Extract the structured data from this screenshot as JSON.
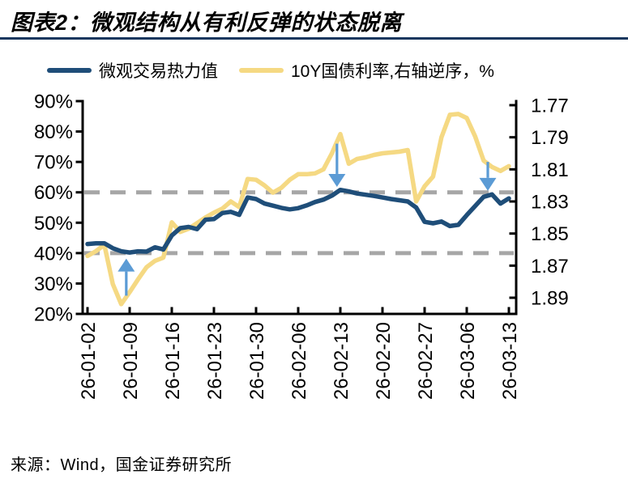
{
  "page": {
    "background": "#FFFFFF"
  },
  "header": {
    "title": "图表2：微观结构从有利反弹的状态脱离",
    "rule_color": "#17375E"
  },
  "legend": {
    "items": [
      {
        "label": "微观交易热力值",
        "color": "#1F4E79"
      },
      {
        "label": "10Y国债利率,右轴逆序，%",
        "color": "#F5D983"
      }
    ]
  },
  "chart_data": {
    "type": "line",
    "x": [
      "26-01-02",
      "26-01-05",
      "26-01-06",
      "26-01-07",
      "26-01-08",
      "26-01-09",
      "26-01-12",
      "26-01-13",
      "26-01-14",
      "26-01-15",
      "26-01-16",
      "26-01-19",
      "26-01-20",
      "26-01-21",
      "26-01-22",
      "26-01-23",
      "26-01-26",
      "26-01-27",
      "26-01-28",
      "26-01-29",
      "26-01-30",
      "26-02-02",
      "26-02-03",
      "26-02-04",
      "26-02-05",
      "26-02-06",
      "26-02-09",
      "26-02-10",
      "26-02-11",
      "26-02-12",
      "26-02-13",
      "26-02-16",
      "26-02-17",
      "26-02-18",
      "26-02-19",
      "26-02-20",
      "26-02-23",
      "26-02-24",
      "26-02-25",
      "26-02-26",
      "26-02-27",
      "26-03-02",
      "26-03-03",
      "26-03-04",
      "26-03-05",
      "26-03-06",
      "26-03-09",
      "26-03-10",
      "26-03-11",
      "26-03-12",
      "26-03-13"
    ],
    "x_tick_labels": [
      "26-01-02",
      "26-01-09",
      "26-01-16",
      "26-01-23",
      "26-01-30",
      "26-02-06",
      "26-02-13",
      "26-02-20",
      "26-02-27",
      "26-03-06",
      "26-03-13"
    ],
    "x_tick_every": 5,
    "series": [
      {
        "name": "微观交易热力值",
        "axis": "left",
        "color": "#1F4E79",
        "values": [
          43.0,
          43.2,
          43.2,
          41.6,
          40.6,
          40.2,
          40.6,
          40.5,
          41.9,
          41.2,
          45.8,
          48.2,
          48.6,
          47.9,
          51.0,
          51.2,
          53.2,
          53.6,
          52.6,
          58.3,
          57.8,
          56.3,
          55.6,
          54.9,
          54.4,
          54.8,
          55.7,
          56.8,
          57.6,
          58.9,
          60.8,
          60.3,
          59.6,
          59.2,
          58.8,
          58.3,
          57.8,
          57.4,
          57.0,
          55.0,
          50.3,
          49.8,
          50.4,
          48.9,
          49.3,
          52.5,
          55.5,
          58.5,
          59.3,
          56.3,
          58.0
        ]
      },
      {
        "name": "10Y国债利率,右轴逆序，%",
        "axis": "right",
        "color": "#F5D983",
        "values": [
          1.864,
          1.861,
          1.857,
          1.8815,
          1.894,
          1.8865,
          1.8785,
          1.871,
          1.867,
          1.865,
          1.843,
          1.849,
          1.847,
          1.8435,
          1.84,
          1.837,
          1.8345,
          1.83,
          1.8335,
          1.816,
          1.8165,
          1.82,
          1.8245,
          1.8215,
          1.8165,
          1.813,
          1.813,
          1.8125,
          1.81,
          1.8,
          1.788,
          1.8065,
          1.8035,
          1.8025,
          1.801,
          1.8,
          1.7995,
          1.799,
          1.798,
          1.83,
          1.8205,
          1.8145,
          1.79,
          1.776,
          1.7755,
          1.778,
          1.7895,
          1.8045,
          1.8085,
          1.811,
          1.808
        ]
      }
    ],
    "left_axis": {
      "unit": "%",
      "min": 20,
      "max": 90,
      "tick_step": 10,
      "tick_labels": [
        "90%",
        "80%",
        "70%",
        "60%",
        "50%",
        "40%",
        "30%",
        "20%"
      ]
    },
    "right_axis": {
      "min": 1.77,
      "max": 1.89,
      "tick_step": 0.02,
      "inverted": true,
      "tick_labels": [
        "1.77",
        "1.79",
        "1.81",
        "1.83",
        "1.85",
        "1.87",
        "1.89"
      ]
    },
    "reference_lines": [
      {
        "axis": "left",
        "value": 60,
        "color": "#A6A6A6",
        "style": "dashed"
      },
      {
        "axis": "left",
        "value": 40,
        "color": "#A6A6A6",
        "style": "dashed"
      }
    ],
    "annotations": [
      {
        "type": "arrow",
        "direction": "up",
        "x_index": 4.6,
        "tail_value": 26,
        "tip_value": 38.2,
        "color": "#5B9BD5"
      },
      {
        "type": "arrow",
        "direction": "down",
        "x_index": 29.6,
        "tail_value": 76,
        "tip_value": 61.8,
        "color": "#5B9BD5"
      },
      {
        "type": "arrow",
        "direction": "down",
        "x_index": 47.5,
        "tail_value": 70,
        "tip_value": 60.5,
        "color": "#5B9BD5"
      }
    ],
    "grid": "off",
    "legend_position": "top"
  },
  "footer": {
    "source": "来源：Wind，国金证券研究所"
  }
}
